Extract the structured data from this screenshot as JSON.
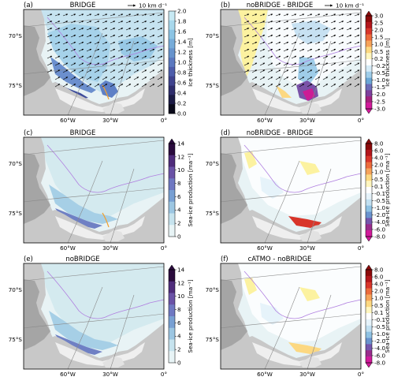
{
  "panels": [
    {
      "letter": "(a)",
      "title": "BRIDGE",
      "scale_label": "10 km d⁻¹",
      "colorbar": {
        "label": "Ice thickness [m]",
        "ticks": [
          "2.0",
          "1.8",
          "1.6",
          "1.4",
          "1.2",
          "1.0",
          "0.8",
          "0.6",
          "0.4",
          "0.2",
          "0.0"
        ],
        "colors": [
          "#c7e9f3",
          "#a8d8ec",
          "#8cc4e4",
          "#77acd9",
          "#6793cc",
          "#5b78bf",
          "#4d5caa",
          "#3f428d",
          "#2e2c6b",
          "#1b1a44",
          "#0a0a1a"
        ]
      }
    },
    {
      "letter": "(b)",
      "title": "noBRIDGE - BRIDGE",
      "scale_label": "10 km d⁻¹",
      "colorbar": {
        "label": "Ice thickness [m]",
        "ticks": [
          "3.0",
          "2.5",
          "2.0",
          "1.5",
          "1.0",
          "0.5",
          "0.2",
          "-0.2",
          "-0.5",
          "-1.0",
          "-1.5",
          "-2.0",
          "-2.5",
          "-3.0"
        ],
        "colors": [
          "#8b0a0a",
          "#b3161b",
          "#d8352a",
          "#ec6b3c",
          "#f6a35a",
          "#fcd881",
          "#fff6bf",
          "#ffffff",
          "#d5ebf7",
          "#9fcde9",
          "#6ba7d6",
          "#6d6cb7",
          "#7e3f9d",
          "#a4207c",
          "#d21a9b"
        ]
      }
    },
    {
      "letter": "(c)",
      "title": "BRIDGE",
      "colorbar": {
        "label": "Sea-ice production [ma⁻¹]",
        "ticks": [
          "14",
          "12",
          "10",
          "8",
          "6",
          "4",
          "2",
          "0"
        ],
        "colors": [
          "#2a0b3d",
          "#4f2c7b",
          "#6a52a6",
          "#6f78c2",
          "#78a0d3",
          "#9cc6e2",
          "#c6e3ee",
          "#e8f4f6"
        ]
      }
    },
    {
      "letter": "(d)",
      "title": "noBRIDGE - BRIDGE",
      "colorbar": {
        "label": "Sea-ice production [ma⁻¹]",
        "ticks": [
          "8.0",
          "6.0",
          "4.0",
          "2.0",
          "1.0",
          "0.5",
          "0.1",
          "-0.1",
          "-0.5",
          "-1.0",
          "-2.0",
          "-4.0",
          "-6.0",
          "-8.0"
        ],
        "colors": [
          "#8b0a0a",
          "#b3161b",
          "#d8352a",
          "#ec6b3c",
          "#f6a35a",
          "#fcd881",
          "#fff6bf",
          "#ffffff",
          "#e6f3fa",
          "#c2e0f1",
          "#8fc2e3",
          "#6a93ce",
          "#7556ad",
          "#9a2c8c",
          "#d21a9b"
        ]
      }
    },
    {
      "letter": "(e)",
      "title": "noBRIDGE",
      "colorbar": {
        "label": "Sea-ice production [ma⁻¹]",
        "ticks": [
          "14",
          "12",
          "10",
          "8",
          "6",
          "4",
          "2",
          "0"
        ],
        "colors": [
          "#2a0b3d",
          "#4f2c7b",
          "#6a52a6",
          "#6f78c2",
          "#78a0d3",
          "#9cc6e2",
          "#c6e3ee",
          "#e8f4f6"
        ]
      }
    },
    {
      "letter": "(f)",
      "title": "cATMO - noBRIDGE",
      "colorbar": {
        "label": "Sea-ice production [ma⁻¹]",
        "ticks": [
          "8.0",
          "6.0",
          "4.0",
          "2.0",
          "1.0",
          "0.5",
          "0.1",
          "-0.1",
          "-0.5",
          "-1.0",
          "-2.0",
          "-4.0",
          "-6.0",
          "-8.0"
        ],
        "colors": [
          "#8b0a0a",
          "#b3161b",
          "#d8352a",
          "#ec6b3c",
          "#f6a35a",
          "#fcd881",
          "#fff6bf",
          "#ffffff",
          "#e6f3fa",
          "#c2e0f1",
          "#8fc2e3",
          "#6a93ce",
          "#7556ad",
          "#9a2c8c",
          "#d21a9b"
        ]
      }
    }
  ],
  "lat_labels": [
    "70°S",
    "75°S"
  ],
  "lon_labels": [
    "60°W",
    "30°W",
    "0°"
  ],
  "colors": {
    "land": "#c8c8c8",
    "landmass": "#a8a8a8",
    "ice_shelf": "#efefef",
    "grid": "#8a8a8a",
    "contour_purple": "#b07fe0",
    "contour_orange": "#f0a030",
    "diff_blue": "#9fcde9",
    "diff_yellow": "#fcf2a0"
  }
}
